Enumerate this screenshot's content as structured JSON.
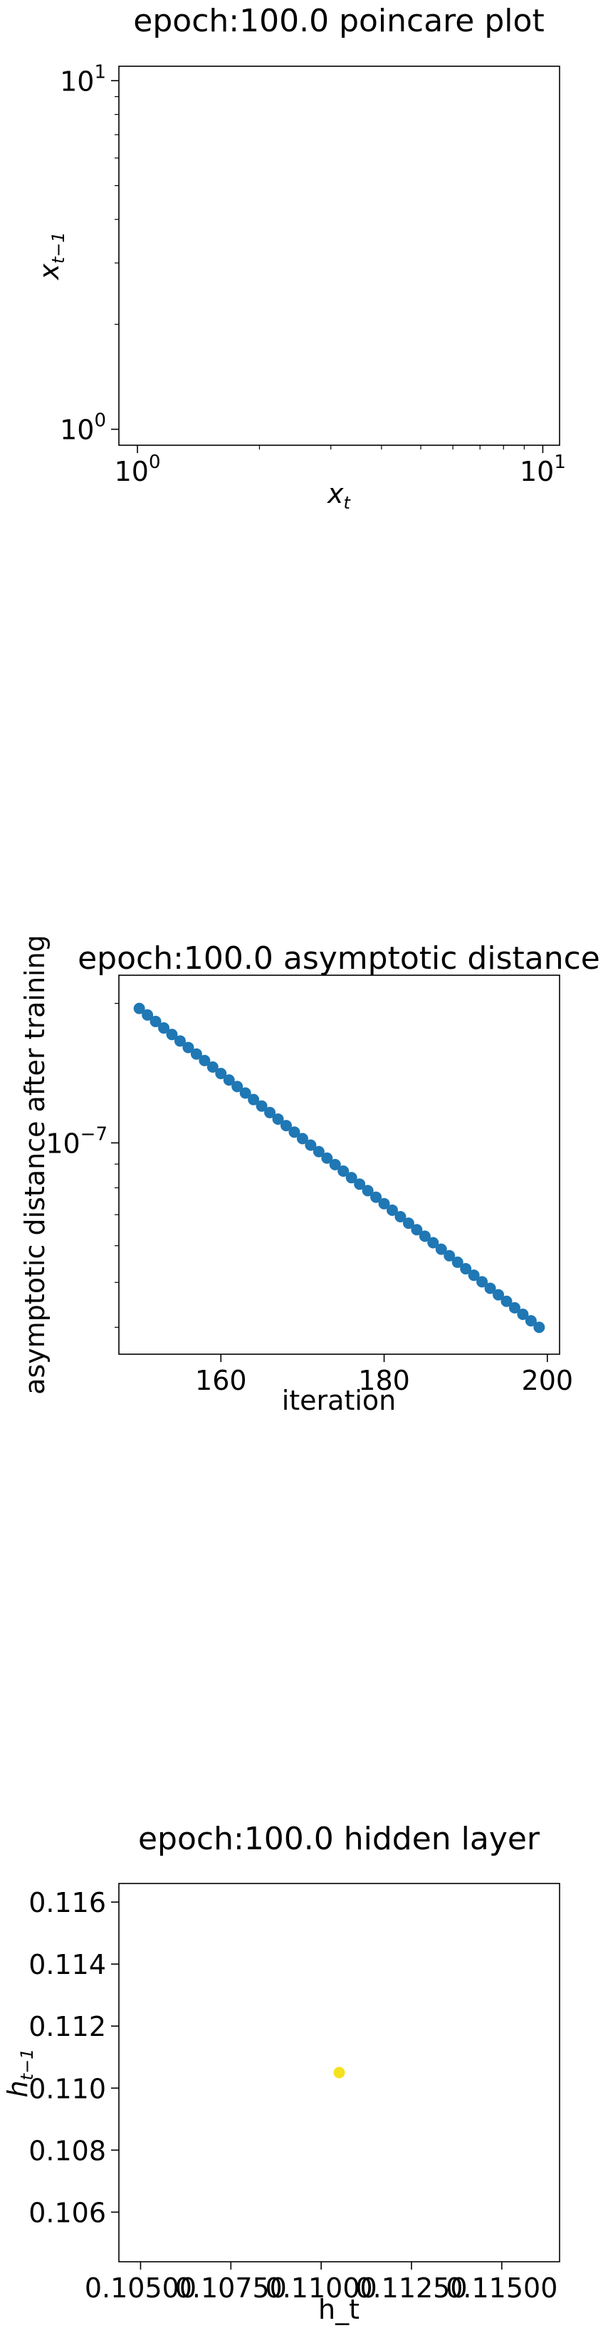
{
  "chart_data": [
    {
      "type": "scatter",
      "title": "epoch:100.0 poincare plot",
      "xlabel": "x",
      "xlabel_sub": "t",
      "ylabel": "x",
      "ylabel_sub": "t−1",
      "xscale": "log",
      "yscale": "log",
      "xlim": [
        0.9,
        11
      ],
      "ylim": [
        0.9,
        11
      ],
      "xticks": [
        {
          "value": 1,
          "base": "10",
          "exp": "0"
        },
        {
          "value": 10,
          "base": "10",
          "exp": "1"
        }
      ],
      "yticks": [
        {
          "value": 1,
          "base": "10",
          "exp": "0"
        },
        {
          "value": 10,
          "base": "10",
          "exp": "1"
        }
      ],
      "points": [],
      "grid": false,
      "color": "#1f77b4"
    },
    {
      "type": "scatter",
      "title": "epoch:100.0 asymptotic distance",
      "xlabel": "iteration",
      "ylabel": "asymptotic distance after training",
      "yscale": "log",
      "xlim": [
        147.5,
        201.5
      ],
      "ylim": [
        3.5e-08,
        2.3e-07
      ],
      "xticks": [
        160,
        180,
        200
      ],
      "yticks": [
        {
          "value": 1e-07,
          "base": "10",
          "exp": "−7"
        }
      ],
      "x_start": 150,
      "x_end": 199,
      "y_start": 1.95e-07,
      "y_end": 4e-08,
      "grid": false,
      "color": "#1f77b4"
    },
    {
      "type": "scatter",
      "title": "epoch:100.0 hidden layer",
      "xlabel": "h_t",
      "ylabel": "h",
      "ylabel_sub": "t−1",
      "xlim": [
        0.1044,
        0.1166
      ],
      "ylim": [
        0.1044,
        0.1166
      ],
      "xticks": [
        "0.10500",
        "0.10750",
        "0.11000",
        "0.11250",
        "0.11500"
      ],
      "yticks": [
        "0.106",
        "0.108",
        "0.110",
        "0.112",
        "0.114",
        "0.116"
      ],
      "points": [
        {
          "x": 0.1105,
          "y": 0.1105
        }
      ],
      "grid": false,
      "color": "#f5e11e"
    }
  ]
}
